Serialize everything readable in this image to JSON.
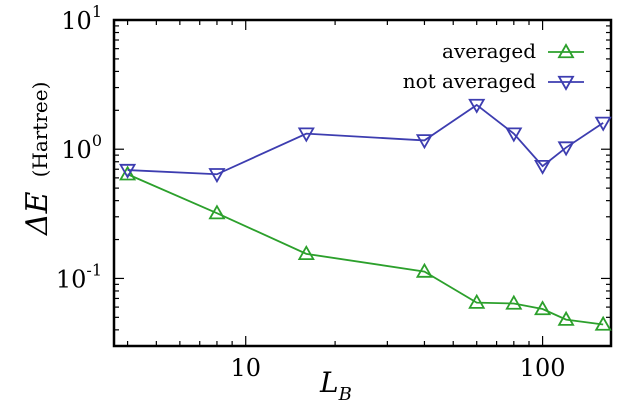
{
  "chart_data": {
    "type": "line",
    "xscale": "log",
    "yscale": "log",
    "xlim": [
      3.6,
      170
    ],
    "ylim": [
      0.03,
      10
    ],
    "x_ticks": [
      {
        "value": 10,
        "label": "10"
      },
      {
        "value": 100,
        "label": "100"
      }
    ],
    "y_ticks": [
      {
        "value": 0.1,
        "base": "10",
        "exp": "-1"
      },
      {
        "value": 1,
        "base": "10",
        "exp": "0"
      },
      {
        "value": 10,
        "base": "10",
        "exp": "1"
      }
    ],
    "xlabel": {
      "main": "L",
      "sub": "B"
    },
    "ylabel": {
      "main": "ΔE",
      "unit": "(Hartree)"
    },
    "legend_position": "top-right",
    "series": [
      {
        "name": "averaged",
        "color": "#2ca02c",
        "marker": "triangle-up",
        "x": [
          4,
          8,
          16,
          40,
          60,
          80,
          100,
          120,
          160
        ],
        "y": [
          0.64,
          0.32,
          0.155,
          0.113,
          0.065,
          0.064,
          0.058,
          0.048,
          0.044
        ]
      },
      {
        "name": "not averaged",
        "color": "#3d3db0",
        "marker": "triangle-down",
        "x": [
          4,
          8,
          16,
          40,
          60,
          80,
          100,
          120,
          160
        ],
        "y": [
          0.69,
          0.64,
          1.32,
          1.17,
          2.2,
          1.32,
          0.74,
          1.03,
          1.6
        ]
      }
    ]
  }
}
